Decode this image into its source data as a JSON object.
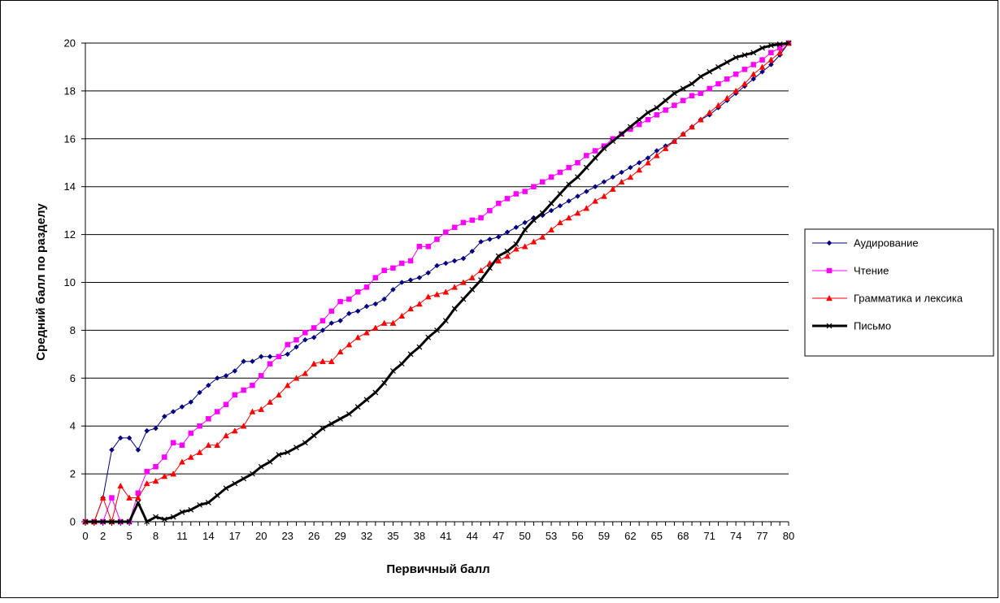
{
  "chart_data": {
    "type": "line",
    "title": "",
    "xlabel": "Первичный балл",
    "ylabel": "Средний балл по разделу",
    "xlim": [
      0,
      80
    ],
    "ylim": [
      0,
      20
    ],
    "x_ticks": [
      0,
      2,
      5,
      8,
      11,
      14,
      17,
      20,
      23,
      26,
      29,
      32,
      35,
      38,
      41,
      44,
      47,
      50,
      53,
      56,
      59,
      62,
      65,
      68,
      71,
      74,
      77,
      80
    ],
    "y_ticks": [
      0,
      2,
      4,
      6,
      8,
      10,
      12,
      14,
      16,
      18,
      20
    ],
    "grid": "horizontal",
    "legend_position": "right",
    "series": [
      {
        "name": "Аудирование",
        "color": "#000080",
        "marker": "diamond",
        "values": [
          0,
          0,
          1,
          3,
          3.5,
          3.5,
          3,
          3.8,
          3.9,
          4.4,
          4.6,
          4.8,
          5,
          5.4,
          5.7,
          6,
          6.1,
          6.3,
          6.7,
          6.7,
          6.9,
          6.9,
          6.9,
          7,
          7.3,
          7.6,
          7.7,
          8,
          8.3,
          8.4,
          8.7,
          8.8,
          9,
          9.1,
          9.3,
          9.7,
          10,
          10.1,
          10.2,
          10.4,
          10.7,
          10.8,
          10.9,
          11,
          11.3,
          11.7,
          11.8,
          11.9,
          12.1,
          12.3,
          12.5,
          12.7,
          12.8,
          13,
          13.2,
          13.4,
          13.6,
          13.8,
          14,
          14.2,
          14.4,
          14.6,
          14.8,
          15,
          15.2,
          15.5,
          15.7,
          15.9,
          16.2,
          16.5,
          16.8,
          17,
          17.3,
          17.6,
          17.9,
          18.2,
          18.5,
          18.8,
          19.1,
          19.5,
          20
        ]
      },
      {
        "name": "Чтение",
        "color": "#FF00FF",
        "marker": "square",
        "values": [
          0,
          0,
          0,
          1,
          0,
          0,
          1.2,
          2.1,
          2.3,
          2.7,
          3.3,
          3.2,
          3.7,
          4,
          4.3,
          4.6,
          4.9,
          5.3,
          5.5,
          5.7,
          6.1,
          6.6,
          6.9,
          7.4,
          7.6,
          7.9,
          8.1,
          8.4,
          8.8,
          9.2,
          9.3,
          9.6,
          9.8,
          10.2,
          10.5,
          10.6,
          10.8,
          10.9,
          11.5,
          11.5,
          11.8,
          12.1,
          12.3,
          12.5,
          12.6,
          12.7,
          13,
          13.3,
          13.5,
          13.7,
          13.8,
          14,
          14.2,
          14.4,
          14.6,
          14.8,
          15,
          15.3,
          15.5,
          15.7,
          16,
          16.2,
          16.4,
          16.6,
          16.8,
          17,
          17.2,
          17.4,
          17.6,
          17.8,
          17.9,
          18.1,
          18.3,
          18.5,
          18.7,
          18.9,
          19.1,
          19.3,
          19.6,
          19.8,
          20
        ]
      },
      {
        "name": "Грамматика и лексика",
        "color": "#FF0000",
        "marker": "triangle",
        "values": [
          0,
          0,
          1,
          0,
          1.5,
          1,
          1,
          1.6,
          1.7,
          1.9,
          2,
          2.5,
          2.7,
          2.9,
          3.2,
          3.2,
          3.6,
          3.8,
          4,
          4.6,
          4.7,
          5,
          5.3,
          5.7,
          6,
          6.2,
          6.6,
          6.7,
          6.7,
          7.1,
          7.4,
          7.7,
          7.9,
          8.1,
          8.3,
          8.3,
          8.6,
          8.9,
          9.1,
          9.4,
          9.5,
          9.6,
          9.8,
          10,
          10.2,
          10.5,
          10.8,
          10.9,
          11.1,
          11.4,
          11.5,
          11.7,
          11.9,
          12.2,
          12.5,
          12.7,
          12.9,
          13.1,
          13.4,
          13.6,
          13.9,
          14.2,
          14.4,
          14.7,
          15,
          15.3,
          15.6,
          15.9,
          16.2,
          16.5,
          16.8,
          17.1,
          17.4,
          17.7,
          18,
          18.3,
          18.7,
          19,
          19.3,
          19.6,
          20
        ]
      },
      {
        "name": "Письмо",
        "color": "#000000",
        "marker": "x",
        "values": [
          0,
          0,
          0,
          0,
          0,
          0,
          0.8,
          0,
          0.2,
          0.1,
          0.2,
          0.4,
          0.5,
          0.7,
          0.8,
          1.1,
          1.4,
          1.6,
          1.8,
          2,
          2.3,
          2.5,
          2.8,
          2.9,
          3.1,
          3.3,
          3.6,
          3.9,
          4.1,
          4.3,
          4.5,
          4.8,
          5.1,
          5.4,
          5.8,
          6.3,
          6.6,
          7,
          7.3,
          7.7,
          8,
          8.4,
          8.9,
          9.3,
          9.7,
          10.1,
          10.6,
          11.1,
          11.3,
          11.6,
          12.2,
          12.6,
          12.9,
          13.3,
          13.7,
          14.1,
          14.4,
          14.8,
          15.2,
          15.6,
          15.9,
          16.2,
          16.5,
          16.8,
          17.1,
          17.3,
          17.6,
          17.9,
          18.1,
          18.3,
          18.6,
          18.8,
          19,
          19.2,
          19.4,
          19.5,
          19.6,
          19.8,
          19.9,
          19.95,
          20
        ]
      }
    ]
  }
}
